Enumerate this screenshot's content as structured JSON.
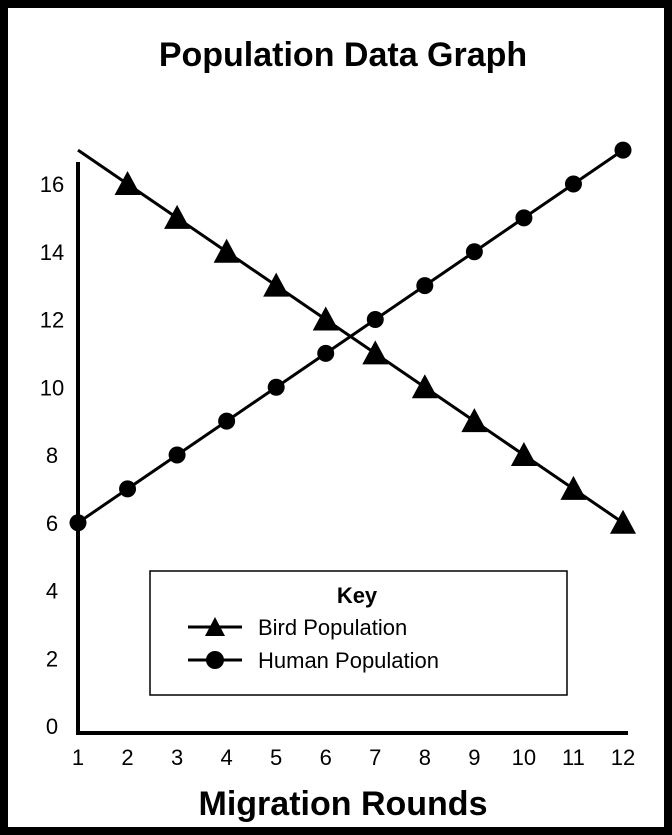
{
  "chart_data": {
    "type": "line",
    "title": "Population Data Graph",
    "xlabel": "Migration Rounds",
    "ylabel": "",
    "x": [
      1,
      2,
      3,
      4,
      5,
      6,
      7,
      8,
      9,
      10,
      11,
      12
    ],
    "xlim": [
      1,
      12
    ],
    "ylim": [
      0,
      16
    ],
    "x_ticks": [
      "1",
      "2",
      "3",
      "4",
      "5",
      "6",
      "7",
      "8",
      "9",
      "10",
      "11",
      "12"
    ],
    "y_ticks": [
      "0",
      "2",
      "4",
      "6",
      "8",
      "10",
      "12",
      "14",
      "16"
    ],
    "grid": false,
    "legend": {
      "title": "Key",
      "placement": "bottom-center"
    },
    "series": [
      {
        "name": "Bird Population",
        "marker": "triangle",
        "color": "#000000",
        "values": [
          17,
          16,
          15,
          14,
          13,
          12,
          11,
          10,
          9,
          8,
          7,
          6
        ]
      },
      {
        "name": "Human Population",
        "marker": "circle",
        "color": "#000000",
        "values": [
          6,
          7,
          8,
          9,
          10,
          11,
          12,
          13,
          14,
          15,
          16,
          17
        ]
      }
    ]
  }
}
